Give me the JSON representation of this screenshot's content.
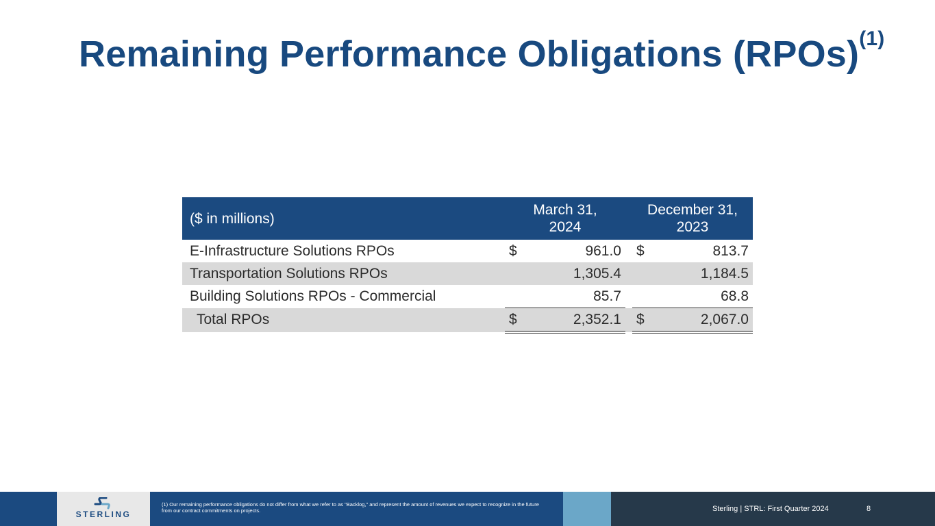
{
  "slide": {
    "title": "Remaining Performance Obligations (RPOs)",
    "title_footnote_ref": "(1)"
  },
  "table": {
    "header_label": "($ in millions)",
    "columns": [
      {
        "line1": "March 31,",
        "line2": "2024"
      },
      {
        "line1": "December 31,",
        "line2": "2023"
      }
    ],
    "rows": [
      {
        "label": "E-Infrastructure Solutions RPOs",
        "cur1": "$",
        "v1": "961.0",
        "cur2": "$",
        "v2": "813.7"
      },
      {
        "label": "Transportation Solutions RPOs",
        "cur1": "",
        "v1": "1,305.4",
        "cur2": "",
        "v2": "1,184.5"
      },
      {
        "label": "Building Solutions RPOs - Commercial",
        "cur1": "",
        "v1": "85.7",
        "cur2": "",
        "v2": "68.8"
      },
      {
        "label": "Total RPOs",
        "cur1": "$",
        "v1": "2,352.1",
        "cur2": "$",
        "v2": "2,067.0"
      }
    ]
  },
  "footer": {
    "logo_text": "STERLING",
    "footnote": "(1)  Our remaining performance obligations do not differ from what we refer to as \"Backlog,\" and represent the amount of revenues we expect to recognize in the future from our contract commitments on projects.",
    "brand": "Sterling | STRL:  First Quarter  2024",
    "page_number": "8"
  },
  "colors": {
    "title": "#18497f",
    "header_bg": "#1b4a80",
    "row_shade": "#d9d9d9",
    "footer_light": "#6ba7c8",
    "footer_dark": "#26394a"
  }
}
